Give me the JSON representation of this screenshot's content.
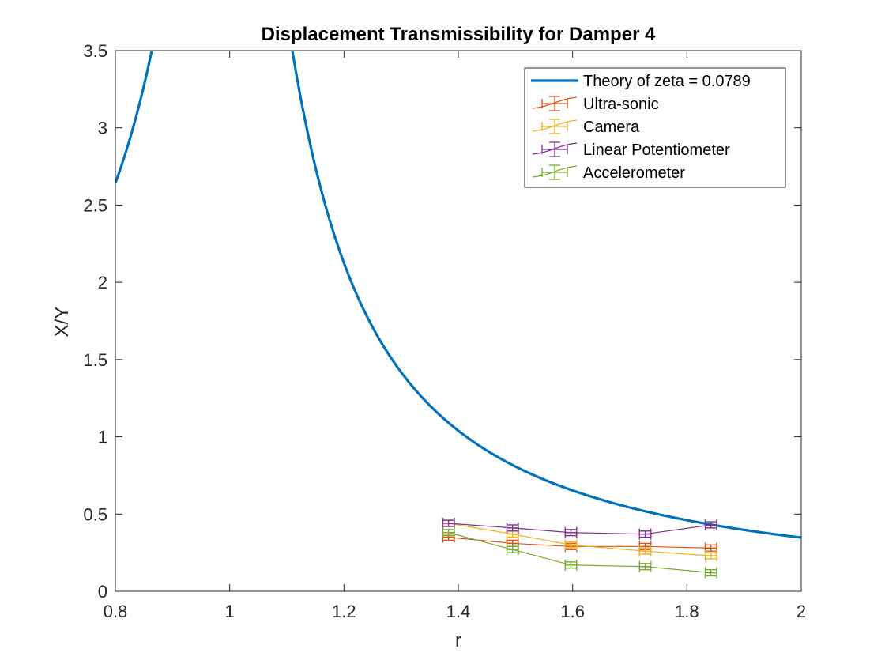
{
  "chart_data": {
    "type": "line",
    "title": "Displacement Transmissibility for Damper 4",
    "xlabel": "r",
    "ylabel": "X/Y",
    "xlim": [
      0.8,
      2
    ],
    "ylim": [
      0,
      3.5
    ],
    "xticks": [
      "0.8",
      "1",
      "1.2",
      "1.4",
      "1.6",
      "1.8",
      "2"
    ],
    "yticks": [
      "0",
      "0.5",
      "1",
      "1.5",
      "2",
      "2.5",
      "3",
      "3.5"
    ],
    "grid": false,
    "legend_position": "top-right",
    "theory": {
      "name": "Theory of zeta = 0.0789",
      "zeta": 0.0789,
      "color": "#0072BD"
    },
    "series": [
      {
        "name": "Ultra-sonic",
        "color": "#D95319",
        "x": [
          1.383,
          1.495,
          1.597,
          1.727,
          1.842
        ],
        "y": [
          0.35,
          0.31,
          0.29,
          0.29,
          0.28
        ],
        "xerr": [
          0.01,
          0.01,
          0.01,
          0.01,
          0.01
        ],
        "yerr": [
          0.02,
          0.02,
          0.02,
          0.02,
          0.02
        ]
      },
      {
        "name": "Camera",
        "color": "#EDB120",
        "x": [
          1.383,
          1.495,
          1.597,
          1.727,
          1.842
        ],
        "y": [
          0.44,
          0.37,
          0.3,
          0.26,
          0.23
        ],
        "xerr": [
          0.01,
          0.01,
          0.01,
          0.01,
          0.01
        ],
        "yerr": [
          0.02,
          0.02,
          0.02,
          0.02,
          0.02
        ]
      },
      {
        "name": "Linear Potentiometer",
        "color": "#7E2F8E",
        "x": [
          1.383,
          1.495,
          1.597,
          1.727,
          1.842
        ],
        "y": [
          0.44,
          0.41,
          0.38,
          0.37,
          0.43
        ],
        "xerr": [
          0.01,
          0.01,
          0.01,
          0.01,
          0.01
        ],
        "yerr": [
          0.02,
          0.02,
          0.02,
          0.02,
          0.02
        ]
      },
      {
        "name": "Accelerometer",
        "color": "#77AC30",
        "x": [
          1.383,
          1.495,
          1.597,
          1.727,
          1.842
        ],
        "y": [
          0.38,
          0.27,
          0.17,
          0.16,
          0.12
        ],
        "xerr": [
          0.01,
          0.01,
          0.01,
          0.01,
          0.01
        ],
        "yerr": [
          0.02,
          0.02,
          0.02,
          0.02,
          0.02
        ]
      }
    ]
  }
}
